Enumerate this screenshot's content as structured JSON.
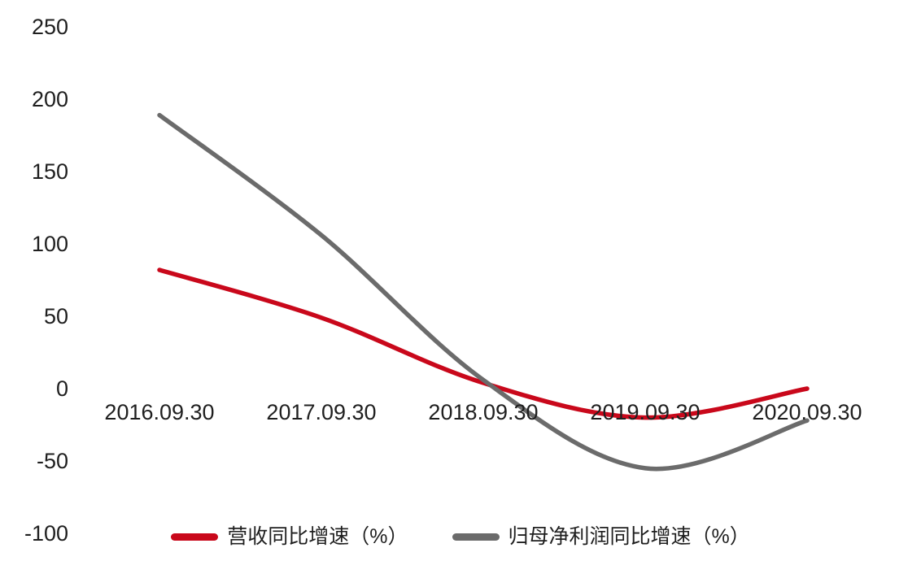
{
  "chart_data": {
    "type": "line",
    "smooth": true,
    "title": "",
    "xlabel": "",
    "ylabel": "",
    "grid": false,
    "legend_position": "bottom",
    "background": "#ffffff",
    "text_color": "#1f1f1f",
    "categories": [
      "2016.09.30",
      "2017.09.30",
      "2018.09.30",
      "2019.09.30",
      "2020.09.30"
    ],
    "series": [
      {
        "name": "营收同比增速（%）",
        "color": "#c9081b",
        "values": [
          82,
          49,
          4,
          -20,
          0
        ]
      },
      {
        "name": "归母净利润同比增速（%）",
        "color": "#6b6b6b",
        "values": [
          189,
          106,
          6,
          -55,
          -22
        ]
      }
    ],
    "ylim": [
      -100,
      250
    ],
    "ytick_labels": [
      "250",
      "200",
      "150",
      "100",
      "50",
      "0",
      "-50",
      "-100"
    ],
    "ytick_values": [
      250,
      200,
      150,
      100,
      50,
      0,
      -50,
      -100
    ]
  }
}
